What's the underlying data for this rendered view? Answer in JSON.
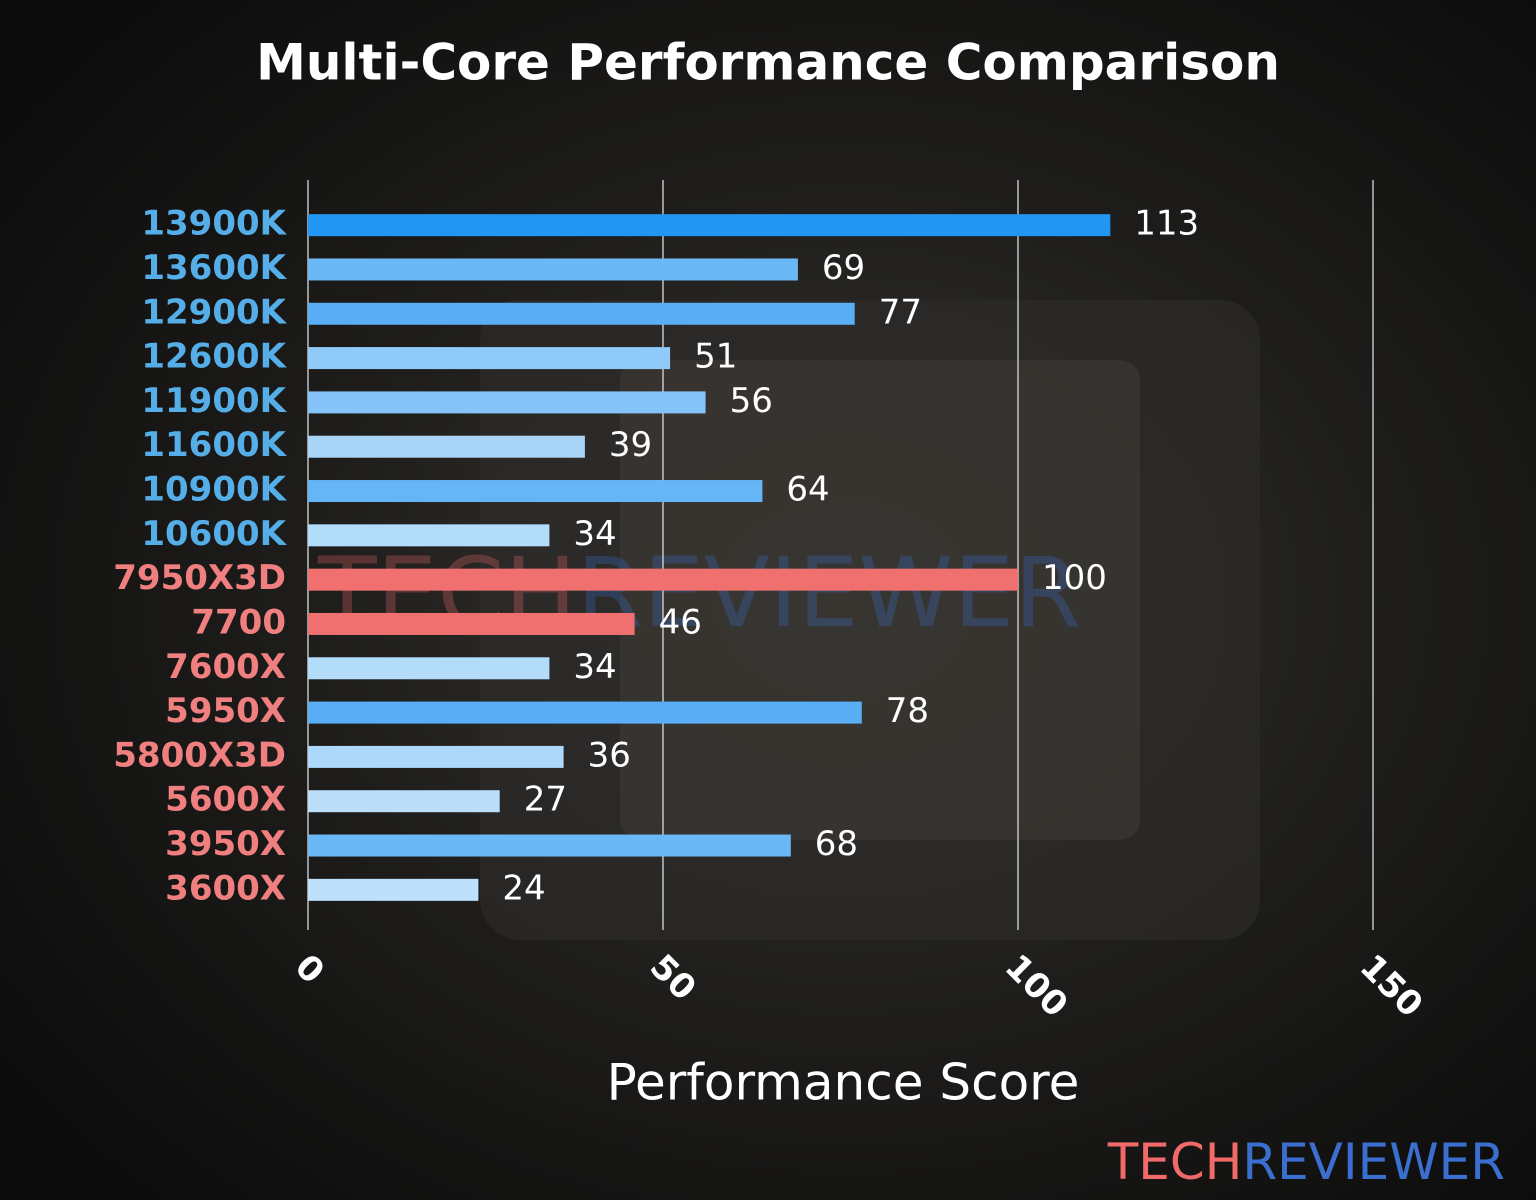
{
  "chart_data": {
    "type": "barh",
    "title": "Multi-Core Performance Comparison",
    "xlabel": "Performance Score",
    "categories": [
      "13900K",
      "13600K",
      "12900K",
      "12600K",
      "11900K",
      "11600K",
      "10900K",
      "10600K",
      "7950X3D",
      "7700",
      "7600X",
      "5950X",
      "5800X3D",
      "5600X",
      "3950X",
      "3600X"
    ],
    "category_colors": [
      "#55aee8",
      "#55aee8",
      "#55aee8",
      "#55aee8",
      "#55aee8",
      "#55aee8",
      "#55aee8",
      "#55aee8",
      "#f08080",
      "#f08080",
      "#f08080",
      "#f08080",
      "#f08080",
      "#f08080",
      "#f08080",
      "#f08080"
    ],
    "values": [
      113,
      69,
      77,
      51,
      56,
      39,
      64,
      34,
      100,
      46,
      34,
      78,
      36,
      27,
      68,
      24
    ],
    "colors": [
      "#2196f3",
      "#6ab8f6",
      "#5aaef5",
      "#90caf9",
      "#86c3f8",
      "#a8d4f8",
      "#66b5f6",
      "#b3dbfa",
      "#f07070",
      "#f07070",
      "#b3dbfa",
      "#5aaef5",
      "#aed8fa",
      "#bbdefb",
      "#6ab8f6",
      "#bfe0fb"
    ],
    "xlim": [
      0,
      150
    ],
    "xticks": [
      0,
      50,
      100,
      150
    ],
    "grid": true,
    "watermark": {
      "first": "TECH",
      "second": "REVIEWER",
      "first_color": "#f06a6a",
      "second_color": "#3a6fd0"
    }
  }
}
